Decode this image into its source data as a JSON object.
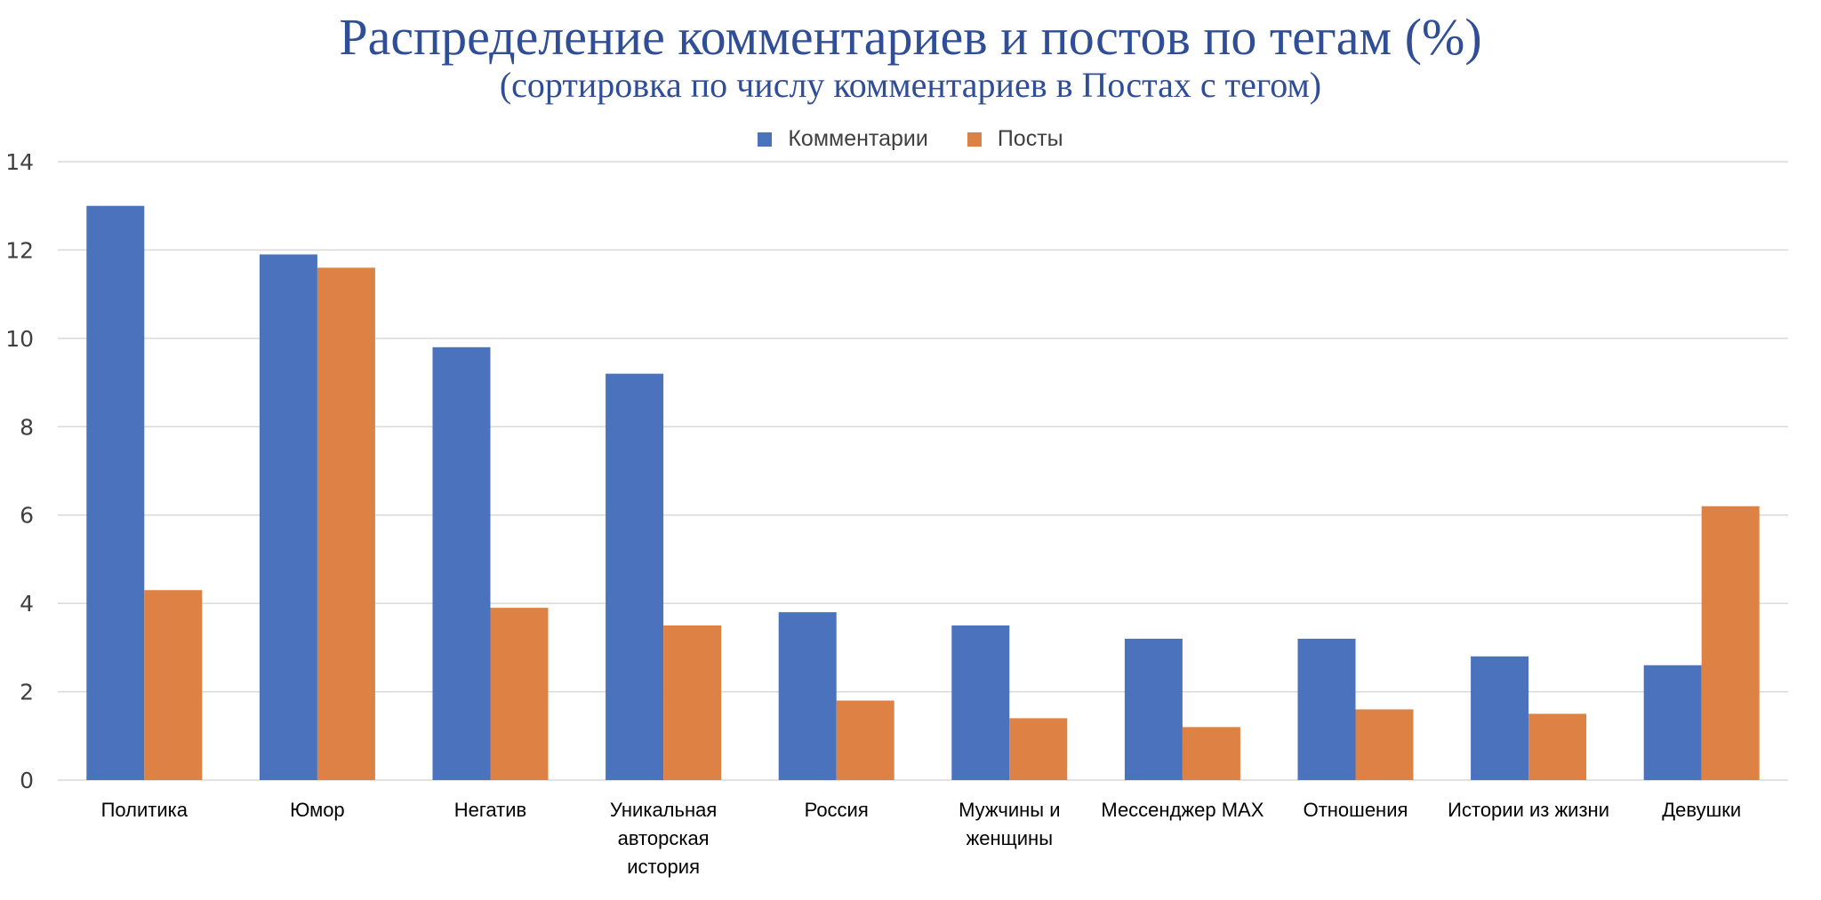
{
  "chart_data": {
    "type": "bar",
    "title": "Распределение комментариев и постов по тегам (%)",
    "subtitle": "(сортировка по числу комментариев в Постах с тегом)",
    "xlabel": "",
    "ylabel": "",
    "ylim": [
      0,
      14
    ],
    "yticks": [
      "0",
      "2",
      "4",
      "6",
      "8",
      "10",
      "12",
      "14"
    ],
    "grid": true,
    "legend_position": "top",
    "categories": [
      "Политика",
      "Юмор",
      "Негатив",
      "Уникальная авторская история",
      "Россия",
      "Мужчины и женщины",
      "Мессенджер MAX",
      "Отношения",
      "Истории из жизни",
      "Девушки"
    ],
    "series": [
      {
        "name": "Комментарии",
        "color": "#4a72bd",
        "values": [
          13.0,
          11.9,
          9.8,
          9.2,
          3.8,
          3.5,
          3.2,
          3.2,
          2.8,
          2.6
        ]
      },
      {
        "name": "Посты",
        "color": "#dd8244",
        "values": [
          4.3,
          11.6,
          3.9,
          3.5,
          1.8,
          1.4,
          1.2,
          1.6,
          1.5,
          6.2
        ]
      }
    ]
  }
}
